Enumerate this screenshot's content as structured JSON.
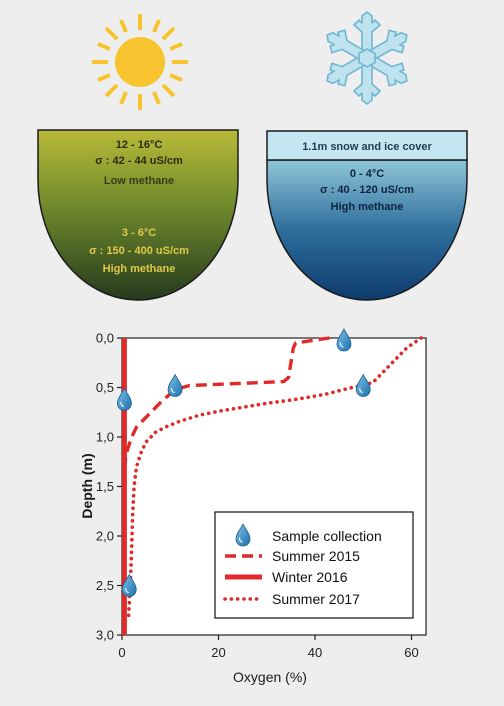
{
  "summer_lake": {
    "surface_temp": "12 - 16°C",
    "surface_conductivity": "σ : 42 - 44 uS/cm",
    "surface_methane": "Low methane",
    "bottom_temp": "3 - 6°C",
    "bottom_conductivity": "σ : 150 - 400 uS/cm",
    "bottom_methane": "High methane",
    "icon": "sun-icon"
  },
  "winter_lake": {
    "ice_cover": "1.1m snow and ice cover",
    "temp": "0 - 4°C",
    "conductivity": "σ : 40 - 120 uS/cm",
    "methane": "High methane",
    "icon": "snowflake-icon"
  },
  "colors": {
    "series": "#e02a2a",
    "drop": "#2a86c4",
    "summer_top": "#b6b836",
    "summer_bottom": "#28401f",
    "winter_top": "#bfe3ee",
    "winter_bottom": "#0e3f72",
    "sun": "#f7c430"
  },
  "chart_data": {
    "type": "line",
    "xlabel": "Oxygen (%)",
    "ylabel": "Depth (m)",
    "xlim": [
      0,
      63
    ],
    "ylim": [
      0,
      3.0
    ],
    "y_inverted": true,
    "x_ticks": [
      0,
      20,
      40,
      60
    ],
    "x_tick_labels": [
      "0",
      "20",
      "40",
      "60"
    ],
    "y_ticks": [
      0,
      0.5,
      1.0,
      1.5,
      2.0,
      2.5,
      3.0
    ],
    "y_tick_labels": [
      "0,0",
      "0,5",
      "1,0",
      "1,5",
      "2,0",
      "2,5",
      "3,0"
    ],
    "legend_position": "bottom-right",
    "series": [
      {
        "name": "Summer 2015",
        "style": "dashed",
        "points": [
          [
            43,
            0.0
          ],
          [
            36,
            0.05
          ],
          [
            35.5,
            0.1
          ],
          [
            34.5,
            0.4
          ],
          [
            33.5,
            0.44
          ],
          [
            14,
            0.48
          ],
          [
            11,
            0.52
          ],
          [
            8,
            0.65
          ],
          [
            5,
            0.8
          ],
          [
            3,
            0.9
          ],
          [
            2,
            1.0
          ],
          [
            1,
            1.15
          ],
          [
            0.5,
            1.3
          ],
          [
            0.5,
            1.5
          ]
        ]
      },
      {
        "name": "Winter 2016",
        "style": "solid",
        "points": [
          [
            0.5,
            0.0
          ],
          [
            0.5,
            3.0
          ]
        ]
      },
      {
        "name": "Summer 2017",
        "style": "dotted",
        "points": [
          [
            62,
            0.0
          ],
          [
            59,
            0.1
          ],
          [
            55,
            0.3
          ],
          [
            52,
            0.45
          ],
          [
            46,
            0.52
          ],
          [
            42,
            0.57
          ],
          [
            36,
            0.62
          ],
          [
            30,
            0.66
          ],
          [
            25,
            0.7
          ],
          [
            20,
            0.74
          ],
          [
            16,
            0.78
          ],
          [
            12,
            0.84
          ],
          [
            9,
            0.9
          ],
          [
            7,
            0.95
          ],
          [
            5,
            1.05
          ],
          [
            4,
            1.15
          ],
          [
            3,
            1.3
          ],
          [
            2.5,
            1.5
          ],
          [
            2.2,
            1.8
          ],
          [
            2,
            2.1
          ],
          [
            1.8,
            2.4
          ],
          [
            1.5,
            2.7
          ],
          [
            1.3,
            2.85
          ]
        ]
      }
    ],
    "sample_collection": {
      "name": "Sample collection",
      "points": [
        [
          46,
          0.02
        ],
        [
          11,
          0.48
        ],
        [
          50,
          0.48
        ],
        [
          0.5,
          0.62
        ],
        [
          1.5,
          2.5
        ]
      ]
    }
  }
}
